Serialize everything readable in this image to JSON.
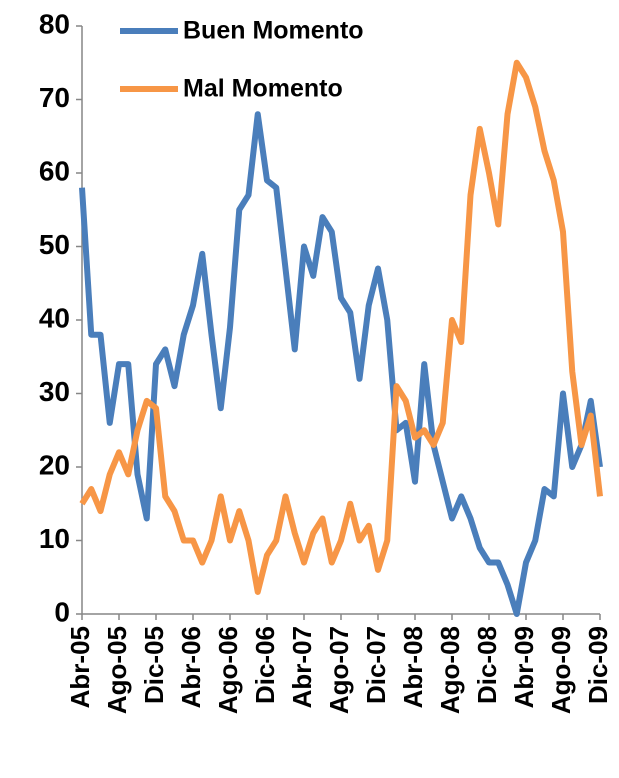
{
  "chart_data": {
    "type": "line",
    "categories": [
      "Abr-05",
      null,
      null,
      null,
      "Ago-05",
      null,
      null,
      null,
      "Dic-05",
      null,
      null,
      null,
      "Abr-06",
      null,
      null,
      null,
      "Ago-06",
      null,
      null,
      null,
      "Dic-06",
      null,
      null,
      null,
      "Abr-07",
      null,
      null,
      null,
      "Ago-07",
      null,
      null,
      null,
      "Dic-07",
      null,
      null,
      null,
      "Abr-08",
      null,
      null,
      null,
      "Ago-08",
      null,
      null,
      null,
      "Dic-08",
      null,
      null,
      null,
      "Abr-09",
      null,
      null,
      null,
      "Ago-09",
      null,
      null,
      null,
      "Dic-09"
    ],
    "series": [
      {
        "name": "Buen Momento",
        "color": "#4a7ebb",
        "values": [
          58,
          38,
          38,
          26,
          34,
          34,
          19,
          13,
          34,
          36,
          31,
          38,
          42,
          49,
          38,
          28,
          39,
          55,
          57,
          68,
          59,
          58,
          47,
          36,
          50,
          46,
          54,
          52,
          43,
          41,
          32,
          42,
          47,
          40,
          25,
          26,
          18,
          34,
          23,
          18,
          13,
          16,
          13,
          9,
          7,
          7,
          4,
          0,
          7,
          10,
          17,
          16,
          30,
          20,
          23,
          29,
          20
        ]
      },
      {
        "name": "Mal Momento",
        "color": "#f79646",
        "values": [
          15,
          17,
          14,
          19,
          22,
          19,
          25,
          29,
          28,
          16,
          14,
          10,
          10,
          7,
          10,
          16,
          10,
          14,
          10,
          3,
          8,
          10,
          16,
          11,
          7,
          11,
          13,
          7,
          10,
          15,
          10,
          12,
          6,
          10,
          31,
          29,
          24,
          25,
          23,
          26,
          40,
          37,
          57,
          66,
          60,
          53,
          68,
          75,
          73,
          69,
          63,
          59,
          52,
          33,
          23,
          27,
          16
        ]
      }
    ],
    "ylim": [
      0,
      80
    ],
    "yticks": [
      0,
      10,
      20,
      30,
      40,
      50,
      60,
      70,
      80
    ],
    "grid": false,
    "legend": "top-left"
  }
}
